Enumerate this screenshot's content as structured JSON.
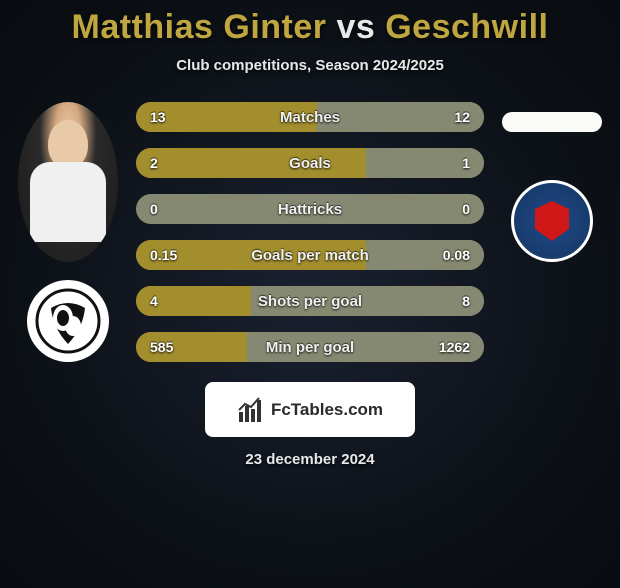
{
  "title": {
    "player1": "Matthias Ginter",
    "vs": "vs",
    "player2": "Geschwill"
  },
  "subtitle": "Club competitions, Season 2024/2025",
  "colors": {
    "bar_left": "#a28e2d",
    "bar_right": "#868972",
    "bar_neutral": "#868972",
    "text": "#f3f3f3"
  },
  "stats": [
    {
      "label": "Matches",
      "v1": "13",
      "v2": "12",
      "left_pct": 52,
      "right_pct": 48
    },
    {
      "label": "Goals",
      "v1": "2",
      "v2": "1",
      "left_pct": 66,
      "right_pct": 34
    },
    {
      "label": "Hattricks",
      "v1": "0",
      "v2": "0",
      "left_pct": 0,
      "right_pct": 0
    },
    {
      "label": "Goals per match",
      "v1": "0.15",
      "v2": "0.08",
      "left_pct": 66,
      "right_pct": 34
    },
    {
      "label": "Shots per goal",
      "v1": "4",
      "v2": "8",
      "left_pct": 33,
      "right_pct": 67
    },
    {
      "label": "Min per goal",
      "v1": "585",
      "v2": "1262",
      "left_pct": 32,
      "right_pct": 68
    }
  ],
  "footer": {
    "brand": "FcTables.com"
  },
  "date": "23 december 2024"
}
